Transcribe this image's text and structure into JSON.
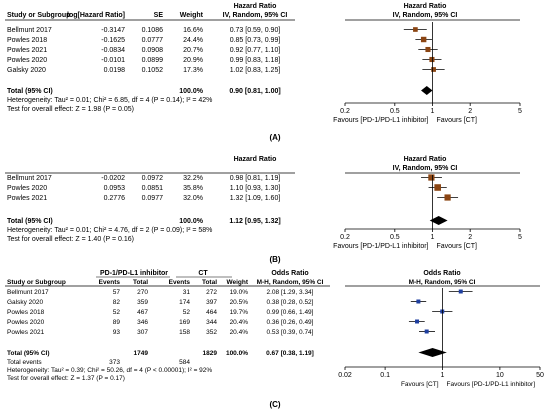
{
  "chart_data": [
    {
      "type": "forest",
      "panel_label": "(A)",
      "headers": {
        "study": "Study or Subgroup",
        "loghr": "log[Hazard Ratio]",
        "se": "SE",
        "weight": "Weight",
        "effect_title": "Hazard Ratio",
        "effect_method": "IV, Random, 95% CI",
        "plot_title": "Hazard Ratio",
        "plot_method": "IV, Random, 95% CI"
      },
      "rows": [
        {
          "study": "Bellmunt 2017",
          "loghr": "-0.3147",
          "se": "0.1086",
          "weight": "16.6%",
          "ci_text": "0.73 [0.59, 0.90]",
          "est": 0.73,
          "lo": 0.59,
          "hi": 0.9
        },
        {
          "study": "Powles 2018",
          "loghr": "-0.1625",
          "se": "0.0777",
          "weight": "24.4%",
          "ci_text": "0.85 [0.73, 0.99]",
          "est": 0.85,
          "lo": 0.73,
          "hi": 0.99
        },
        {
          "study": "Powles 2021",
          "loghr": "-0.0834",
          "se": "0.0908",
          "weight": "20.7%",
          "ci_text": "0.92 [0.77, 1.10]",
          "est": 0.92,
          "lo": 0.77,
          "hi": 1.1
        },
        {
          "study": "Powles 2020",
          "loghr": "-0.0101",
          "se": "0.0899",
          "weight": "20.9%",
          "ci_text": "0.99 [0.83, 1.18]",
          "est": 0.99,
          "lo": 0.83,
          "hi": 1.18
        },
        {
          "study": "Galsky 2020",
          "loghr": "0.0198",
          "se": "0.1052",
          "weight": "17.3%",
          "ci_text": "1.02 [0.83, 1.25]",
          "est": 1.02,
          "lo": 0.83,
          "hi": 1.25
        }
      ],
      "total": {
        "label": "Total (95% CI)",
        "weight": "100.0%",
        "ci_text": "0.90 [0.81, 1.00]",
        "est": 0.9,
        "lo": 0.81,
        "hi": 1.0
      },
      "heterogeneity": "Heterogeneity: Tau² = 0.01; Chi² = 6.85, df = 4 (P = 0.14); I² = 42%",
      "overall_test": "Test for overall effect: Z = 1.98 (P = 0.05)",
      "x_scale": "log",
      "x_ticks": [
        0.2,
        0.5,
        1,
        2,
        5
      ],
      "x_tick_labels": [
        "0.2",
        "0.5",
        "1",
        "2",
        "5"
      ],
      "xlim": [
        0.2,
        5
      ],
      "favours_left": "Favours [PD-1/PD-L1 inhibitor]",
      "favours_right": "Favours [CT]",
      "box_color": "#8b4513"
    },
    {
      "type": "forest",
      "panel_label": "(B)",
      "headers": {
        "study": "",
        "loghr": "",
        "se": "",
        "weight": "",
        "effect_title": "Hazard Ratio",
        "effect_method": "",
        "plot_title": "Hazard Ratio",
        "plot_method": "IV, Random, 95% CI"
      },
      "rows": [
        {
          "study": "Bellmunt 2017",
          "loghr": "-0.0202",
          "se": "0.0972",
          "weight": "32.2%",
          "ci_text": "0.98 [0.81, 1.19]",
          "est": 0.98,
          "lo": 0.81,
          "hi": 1.19
        },
        {
          "study": "Powles 2020",
          "loghr": "0.0953",
          "se": "0.0851",
          "weight": "35.8%",
          "ci_text": "1.10 [0.93, 1.30]",
          "est": 1.1,
          "lo": 0.93,
          "hi": 1.3
        },
        {
          "study": "Powles 2021",
          "loghr": "0.2776",
          "se": "0.0977",
          "weight": "32.0%",
          "ci_text": "1.32 [1.09, 1.60]",
          "est": 1.32,
          "lo": 1.09,
          "hi": 1.6
        }
      ],
      "total": {
        "label": "Total (95% CI)",
        "weight": "100.0%",
        "ci_text": "1.12 [0.95, 1.32]",
        "est": 1.12,
        "lo": 0.95,
        "hi": 1.32
      },
      "heterogeneity": "Heterogeneity: Tau² = 0.01; Chi² = 4.76, df = 2 (P = 0.09); I² = 58%",
      "overall_test": "Test for overall effect: Z = 1.40 (P = 0.16)",
      "x_scale": "log",
      "x_ticks": [
        0.2,
        0.5,
        1,
        2,
        5
      ],
      "x_tick_labels": [
        "0.2",
        "0.5",
        "1",
        "2",
        "5"
      ],
      "xlim": [
        0.2,
        5
      ],
      "favours_left": "Favours [PD-1/PD-L1 inhibitor]",
      "favours_right": "Favours [CT]",
      "box_color": "#8b4513"
    },
    {
      "type": "forest",
      "panel_label": "(C)",
      "headers": {
        "group1": "PD-1/PD-L1 inhibitor",
        "group2": "CT",
        "study": "Study or Subgroup",
        "events1": "Events",
        "total1": "Total",
        "events2": "Events",
        "total2": "Total",
        "weight": "Weight",
        "effect_title": "Odds Ratio",
        "effect_method": "M-H, Random, 95% CI",
        "plot_title": "Odds Ratio",
        "plot_method": "M-H, Random, 95% CI"
      },
      "rows": [
        {
          "study": "Bellmunt 2017",
          "e1": "57",
          "t1": "270",
          "e2": "31",
          "t2": "272",
          "weight": "19.0%",
          "ci_text": "2.08 [1.29, 3.34]",
          "est": 2.08,
          "lo": 1.29,
          "hi": 3.34
        },
        {
          "study": "Galsky 2020",
          "e1": "82",
          "t1": "359",
          "e2": "174",
          "t2": "397",
          "weight": "20.5%",
          "ci_text": "0.38 [0.28, 0.52]",
          "est": 0.38,
          "lo": 0.28,
          "hi": 0.52
        },
        {
          "study": "Powles 2018",
          "e1": "52",
          "t1": "467",
          "e2": "52",
          "t2": "464",
          "weight": "19.7%",
          "ci_text": "0.99 [0.66, 1.49]",
          "est": 0.99,
          "lo": 0.66,
          "hi": 1.49
        },
        {
          "study": "Powles 2020",
          "e1": "89",
          "t1": "346",
          "e2": "169",
          "t2": "344",
          "weight": "20.4%",
          "ci_text": "0.36 [0.26, 0.49]",
          "est": 0.36,
          "lo": 0.26,
          "hi": 0.49
        },
        {
          "study": "Powles 2021",
          "e1": "93",
          "t1": "307",
          "e2": "158",
          "t2": "352",
          "weight": "20.4%",
          "ci_text": "0.53 [0.39, 0.74]",
          "est": 0.53,
          "lo": 0.39,
          "hi": 0.74
        }
      ],
      "total": {
        "label": "Total (95% CI)",
        "t1": "1749",
        "t2": "1829",
        "weight": "100.0%",
        "ci_text": "0.67 [0.38, 1.19]",
        "est": 0.67,
        "lo": 0.38,
        "hi": 1.19
      },
      "total_events": {
        "label": "Total events",
        "e1": "373",
        "e2": "584"
      },
      "heterogeneity": "Heterogeneity: Tau² = 0.39; Chi² = 50.26, df = 4 (P < 0.00001); I² = 92%",
      "overall_test": "Test for overall effect: Z = 1.37 (P = 0.17)",
      "x_scale": "log",
      "x_ticks": [
        0.02,
        0.1,
        1,
        10,
        50
      ],
      "x_tick_labels": [
        "0.02",
        "0.1",
        "1",
        "10",
        "50"
      ],
      "xlim": [
        0.02,
        50
      ],
      "favours_left": "Favours [CT]",
      "favours_right": "Favours [PD-1/PD-L1 inhibitor]",
      "box_color": "#1f3fa0"
    }
  ]
}
